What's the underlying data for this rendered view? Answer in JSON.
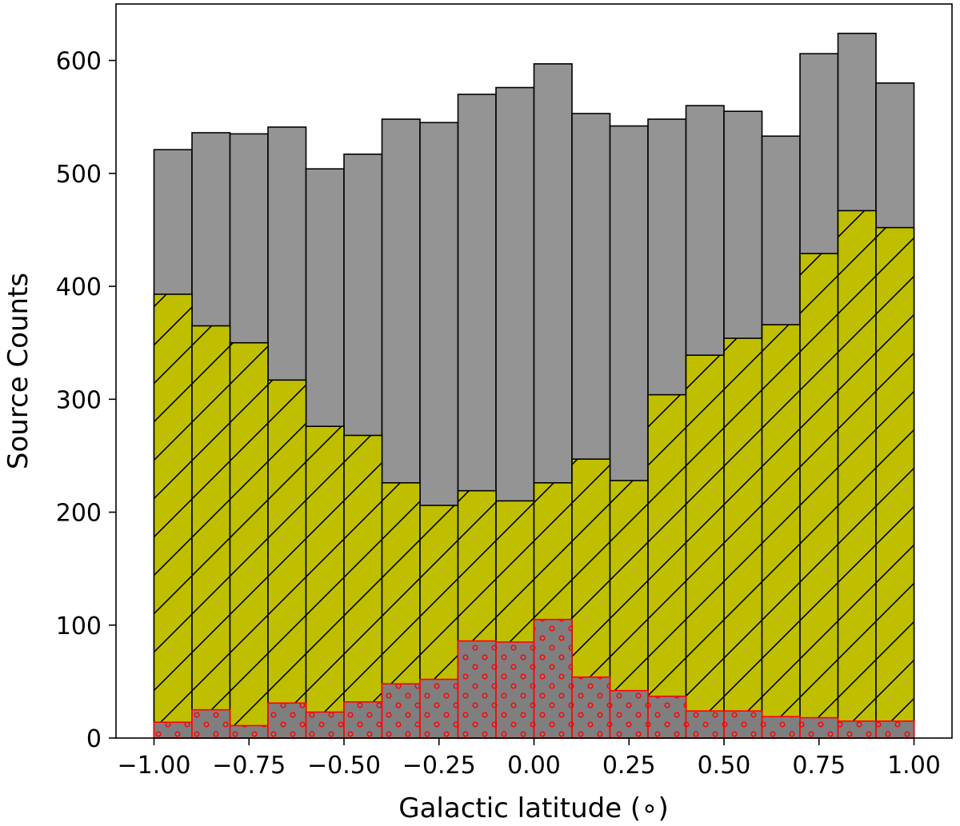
{
  "chart_data": {
    "type": "bar",
    "subtype": "overlaid histogram",
    "xlabel": "Galactic latitude (∘)",
    "ylabel": "Source Counts",
    "xlim": [
      -1.1,
      1.1
    ],
    "ylim": [
      0,
      650
    ],
    "xticks": [
      -1.0,
      -0.75,
      -0.5,
      -0.25,
      0.0,
      0.25,
      0.5,
      0.75,
      1.0
    ],
    "xtick_labels": [
      "−1.00",
      "−0.75",
      "−0.50",
      "−0.25",
      "0.00",
      "0.25",
      "0.50",
      "0.75",
      "1.00"
    ],
    "yticks": [
      0,
      100,
      200,
      300,
      400,
      500,
      600
    ],
    "ytick_labels": [
      "0",
      "100",
      "200",
      "300",
      "400",
      "500",
      "600"
    ],
    "bin_edges": [
      -1.0,
      -0.9,
      -0.8,
      -0.7,
      -0.6,
      -0.5,
      -0.4,
      -0.3,
      -0.2,
      -0.1,
      0.0,
      0.1,
      0.2,
      0.3,
      0.4,
      0.5,
      0.6,
      0.7,
      0.8,
      0.9,
      1.0
    ],
    "series": [
      {
        "style": "gray-filled",
        "color": "#949494",
        "edge_color": "#000000",
        "values": [
          521,
          536,
          535,
          541,
          504,
          517,
          548,
          545,
          570,
          576,
          597,
          553,
          542,
          548,
          560,
          555,
          533,
          606,
          624,
          580
        ]
      },
      {
        "style": "hatched",
        "color": "#bfbf00",
        "edge_color": "#000000",
        "hatch": "/",
        "values": [
          393,
          365,
          350,
          317,
          276,
          268,
          226,
          206,
          219,
          210,
          226,
          247,
          228,
          304,
          339,
          354,
          366,
          429,
          467,
          452
        ]
      },
      {
        "style": "dotted",
        "color": "#7f7f7f",
        "edge_color": "#ff0000",
        "hatch": "o",
        "values": [
          14,
          25,
          11,
          31,
          23,
          32,
          48,
          52,
          86,
          85,
          105,
          54,
          42,
          37,
          24,
          24,
          19,
          18,
          15,
          15
        ]
      }
    ]
  }
}
